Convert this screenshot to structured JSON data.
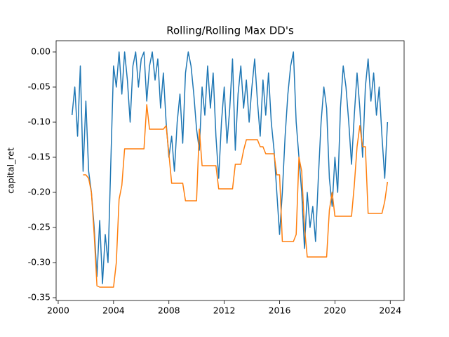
{
  "chart_data": {
    "type": "line",
    "title": "Rolling/Rolling Max DD's",
    "ylabel": "capital_ret",
    "x": [
      2001,
      2001.2,
      2001.4,
      2001.6,
      2001.8,
      2002,
      2002.2,
      2002.4,
      2002.6,
      2002.8,
      2003,
      2003.2,
      2003.4,
      2003.6,
      2003.8,
      2004,
      2004.2,
      2004.4,
      2004.6,
      2004.8,
      2005,
      2005.2,
      2005.4,
      2005.6,
      2005.8,
      2006,
      2006.2,
      2006.4,
      2006.6,
      2006.8,
      2007,
      2007.2,
      2007.4,
      2007.6,
      2007.8,
      2008,
      2008.2,
      2008.4,
      2008.6,
      2008.8,
      2009,
      2009.2,
      2009.4,
      2009.6,
      2009.8,
      2010,
      2010.2,
      2010.4,
      2010.6,
      2010.8,
      2011,
      2011.2,
      2011.4,
      2011.6,
      2011.8,
      2012,
      2012.2,
      2012.4,
      2012.6,
      2012.8,
      2013,
      2013.2,
      2013.4,
      2013.6,
      2013.8,
      2014,
      2014.2,
      2014.4,
      2014.6,
      2014.8,
      2015,
      2015.2,
      2015.4,
      2015.6,
      2015.8,
      2016,
      2016.2,
      2016.4,
      2016.6,
      2016.8,
      2017,
      2017.2,
      2017.4,
      2017.6,
      2017.8,
      2018,
      2018.2,
      2018.4,
      2018.6,
      2018.8,
      2019,
      2019.2,
      2019.4,
      2019.6,
      2019.8,
      2020,
      2020.2,
      2020.4,
      2020.6,
      2020.8,
      2021,
      2021.2,
      2021.4,
      2021.6,
      2021.8,
      2022,
      2022.2,
      2022.4,
      2022.6,
      2022.8,
      2023,
      2023.2,
      2023.4,
      2023.6,
      2023.8
    ],
    "series": [
      {
        "color": "#1f77b4",
        "values": [
          -0.09,
          -0.05,
          -0.12,
          -0.02,
          -0.17,
          -0.07,
          -0.17,
          -0.2,
          -0.25,
          -0.32,
          -0.24,
          -0.33,
          -0.26,
          -0.3,
          -0.16,
          -0.02,
          -0.05,
          0,
          -0.06,
          0,
          -0.04,
          -0.1,
          -0.02,
          0,
          -0.05,
          -0.01,
          0,
          -0.07,
          -0.02,
          0,
          -0.04,
          -0.01,
          -0.08,
          -0.03,
          -0.1,
          -0.15,
          -0.12,
          -0.17,
          -0.1,
          -0.06,
          -0.13,
          -0.03,
          0,
          -0.02,
          -0.06,
          -0.11,
          -0.14,
          -0.05,
          -0.09,
          -0.02,
          -0.08,
          -0.03,
          -0.12,
          -0.18,
          -0.1,
          -0.05,
          -0.13,
          -0.08,
          -0.01,
          -0.14,
          -0.06,
          -0.02,
          -0.08,
          -0.04,
          -0.1,
          -0.05,
          -0.01,
          -0.07,
          -0.12,
          -0.04,
          -0.09,
          -0.03,
          -0.1,
          -0.14,
          -0.2,
          -0.26,
          -0.2,
          -0.12,
          -0.06,
          -0.02,
          0,
          -0.1,
          -0.15,
          -0.2,
          -0.28,
          -0.2,
          -0.25,
          -0.22,
          -0.27,
          -0.18,
          -0.1,
          -0.05,
          -0.08,
          -0.18,
          -0.22,
          -0.15,
          -0.2,
          -0.08,
          -0.02,
          -0.05,
          -0.1,
          -0.16,
          -0.09,
          -0.03,
          -0.08,
          -0.15,
          -0.05,
          -0.01,
          -0.07,
          -0.03,
          -0.09,
          -0.05,
          -0.12,
          -0.18,
          -0.1
        ]
      },
      {
        "color": "#ff7f0e",
        "values": [
          null,
          null,
          null,
          null,
          -0.175,
          -0.175,
          -0.18,
          -0.2,
          -0.26,
          -0.333,
          -0.335,
          -0.335,
          -0.335,
          -0.335,
          -0.335,
          -0.335,
          -0.3,
          -0.21,
          -0.19,
          -0.138,
          -0.138,
          -0.138,
          -0.138,
          -0.138,
          -0.138,
          -0.138,
          -0.138,
          -0.075,
          -0.11,
          -0.11,
          -0.11,
          -0.11,
          -0.11,
          -0.11,
          -0.105,
          -0.145,
          -0.187,
          -0.187,
          -0.187,
          -0.187,
          -0.187,
          -0.212,
          -0.212,
          -0.212,
          -0.212,
          -0.212,
          -0.11,
          -0.162,
          -0.162,
          -0.162,
          -0.162,
          -0.162,
          -0.162,
          -0.195,
          -0.195,
          -0.195,
          -0.195,
          -0.195,
          -0.195,
          -0.16,
          -0.16,
          -0.16,
          -0.14,
          -0.125,
          -0.125,
          -0.125,
          -0.125,
          -0.125,
          -0.135,
          -0.135,
          -0.145,
          -0.145,
          -0.145,
          -0.145,
          -0.175,
          -0.175,
          -0.27,
          -0.27,
          -0.27,
          -0.27,
          -0.27,
          -0.26,
          -0.15,
          -0.17,
          -0.25,
          -0.292,
          -0.292,
          -0.292,
          -0.292,
          -0.292,
          -0.292,
          -0.292,
          -0.292,
          -0.225,
          -0.2,
          -0.234,
          -0.234,
          -0.234,
          -0.234,
          -0.234,
          -0.234,
          -0.234,
          -0.19,
          -0.135,
          -0.105,
          -0.135,
          -0.135,
          -0.23,
          -0.23,
          -0.23,
          -0.23,
          -0.23,
          -0.23,
          -0.213,
          -0.185
        ]
      }
    ],
    "xlim": [
      1999.85,
      2025.0
    ],
    "xticks": [
      2000,
      2004,
      2008,
      2012,
      2016,
      2020,
      2024
    ],
    "ylim": [
      -0.354,
      0.016
    ],
    "yticks": [
      {
        "value": 0,
        "label": "0.00"
      },
      {
        "value": -0.05,
        "label": "-0.05"
      },
      {
        "value": -0.1,
        "label": "-0.10"
      },
      {
        "value": -0.15,
        "label": "-0.15"
      },
      {
        "value": -0.2,
        "label": "-0.20"
      },
      {
        "value": -0.25,
        "label": "-0.25"
      },
      {
        "value": -0.3,
        "label": "-0.30"
      },
      {
        "value": -0.35,
        "label": "-0.35"
      }
    ],
    "grid": false
  }
}
